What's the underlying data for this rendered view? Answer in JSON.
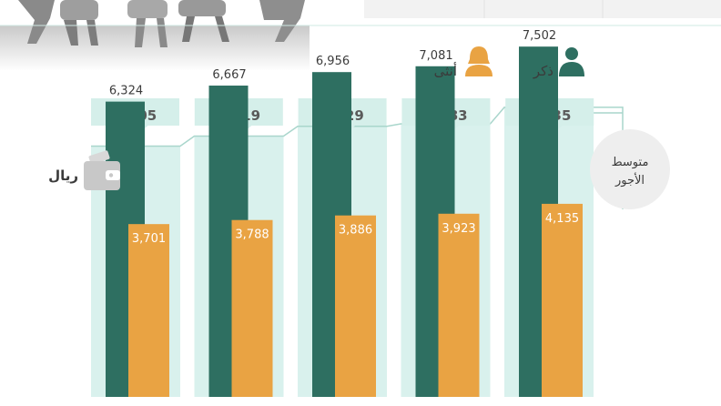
{
  "legend": {
    "male_label": "ذكر",
    "female_label": "أنثى"
  },
  "unit_label": "ريال",
  "avg_circle": {
    "line1": "متوسط",
    "line2": "الأجور"
  },
  "icons": {
    "male": "male-person-icon",
    "female": "female-person-icon",
    "wallet": "wallet-icon"
  },
  "colors": {
    "male": "#2e6f61",
    "female": "#e9a343",
    "band": "#d9f1ed",
    "line": "#a9d6cc",
    "avg_box": "#d5efea",
    "circle": "#eeeeee"
  },
  "chart_data": {
    "type": "bar",
    "series": [
      {
        "name": "ذكر",
        "values": [
          6324,
          6667,
          6956,
          7081,
          7502
        ]
      },
      {
        "name": "أنثى",
        "values": [
          3701,
          3788,
          3886,
          3923,
          4135
        ]
      }
    ],
    "averages": [
      5605,
      5819,
      6029,
      6083,
      6435
    ],
    "ylim": [
      0,
      8500
    ]
  }
}
